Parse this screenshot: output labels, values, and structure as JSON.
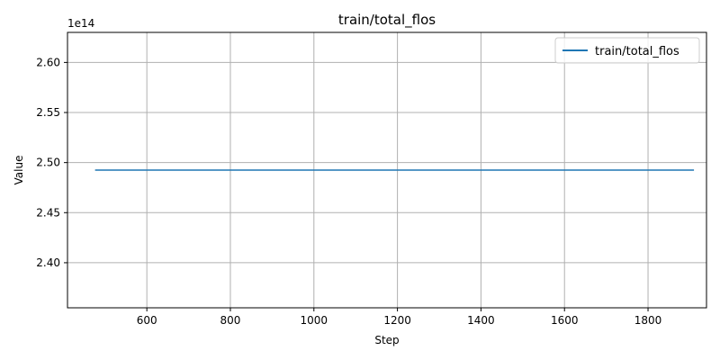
{
  "chart_data": {
    "type": "line",
    "title": "train/total_flos",
    "xlabel": "Step",
    "ylabel": "Value",
    "y_offset_label": "1e14",
    "xlim": [
      410,
      1940
    ],
    "ylim": [
      2.355,
      2.63
    ],
    "x_ticks": [
      600,
      800,
      1000,
      1200,
      1400,
      1600,
      1800
    ],
    "x_tick_labels": [
      "600",
      "800",
      "1000",
      "1200",
      "1400",
      "1600",
      "1800"
    ],
    "y_ticks": [
      2.4,
      2.45,
      2.5,
      2.55,
      2.6
    ],
    "y_tick_labels": [
      "2.40",
      "2.45",
      "2.50",
      "2.55",
      "2.60"
    ],
    "grid": true,
    "legend_position": "top-right",
    "series": [
      {
        "name": "train/total_flos",
        "color": "#1f77b4",
        "x": [
          476,
          1910
        ],
        "y": [
          2.4925,
          2.4925
        ]
      }
    ]
  }
}
